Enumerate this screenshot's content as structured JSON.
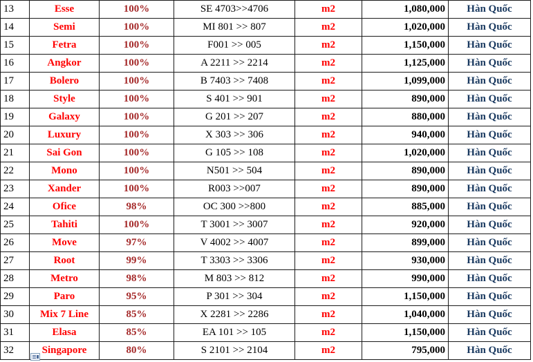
{
  "rows": [
    {
      "stt": "13",
      "name": "Esse",
      "pct": "100%",
      "code": "SE 4703>>4706",
      "unit": "m2",
      "price": "1,080,000",
      "origin": "Hàn Quốc"
    },
    {
      "stt": "14",
      "name": "Semi",
      "pct": "100%",
      "code": "MI 801 >> 807",
      "unit": "m2",
      "price": "1,020,000",
      "origin": "Hàn Quốc"
    },
    {
      "stt": "15",
      "name": "Fetra",
      "pct": "100%",
      "code": "F001 >> 005",
      "unit": "m2",
      "price": "1,150,000",
      "origin": "Hàn Quốc"
    },
    {
      "stt": "16",
      "name": "Angkor",
      "pct": "100%",
      "code": "A 2211 >> 2214",
      "unit": "m2",
      "price": "1,125,000",
      "origin": "Hàn Quốc"
    },
    {
      "stt": "17",
      "name": "Bolero",
      "pct": "100%",
      "code": "B 7403 >> 7408",
      "unit": "m2",
      "price": "1,099,000",
      "origin": "Hàn Quốc"
    },
    {
      "stt": "18",
      "name": "Style",
      "pct": "100%",
      "code": "S 401 >> 901",
      "unit": "m2",
      "price": "890,000",
      "origin": "Hàn Quốc"
    },
    {
      "stt": "19",
      "name": "Galaxy",
      "pct": "100%",
      "code": "G 201 >> 207",
      "unit": "m2",
      "price": "880,000",
      "origin": "Hàn Quốc"
    },
    {
      "stt": "20",
      "name": "Luxury",
      "pct": "100%",
      "code": "X 303 >> 306",
      "unit": "m2",
      "price": "940,000",
      "origin": "Hàn Quốc"
    },
    {
      "stt": "21",
      "name": "Sai Gon",
      "pct": "100%",
      "code": "G 105 >> 108",
      "unit": "m2",
      "price": "1,020,000",
      "origin": "Hàn Quốc"
    },
    {
      "stt": "22",
      "name": "Mono",
      "pct": "100%",
      "code": "N501 >> 504",
      "unit": "m2",
      "price": "890,000",
      "origin": "Hàn Quốc"
    },
    {
      "stt": "23",
      "name": "Xander",
      "pct": "100%",
      "code": "R003 >>007",
      "unit": "m2",
      "price": "890,000",
      "origin": "Hàn Quốc"
    },
    {
      "stt": "24",
      "name": "Ofice",
      "pct": "98%",
      "code": "OC 300 >>800",
      "unit": "m2",
      "price": "885,000",
      "origin": "Hàn Quốc"
    },
    {
      "stt": "25",
      "name": "Tahiti",
      "pct": "100%",
      "code": "T 3001 >> 3007",
      "unit": "m2",
      "price": "920,000",
      "origin": "Hàn Quốc"
    },
    {
      "stt": "26",
      "name": "Move",
      "pct": "97%",
      "code": "V 4002 >> 4007",
      "unit": "m2",
      "price": "899,000",
      "origin": "Hàn Quốc"
    },
    {
      "stt": "27",
      "name": "Root",
      "pct": "99%",
      "code": "T 3303 >> 3306",
      "unit": "m2",
      "price": "930,000",
      "origin": "Hàn Quốc"
    },
    {
      "stt": "28",
      "name": "Metro",
      "pct": "98%",
      "code": "M 803 >> 812",
      "unit": "m2",
      "price": "990,000",
      "origin": "Hàn Quốc"
    },
    {
      "stt": "29",
      "name": "Paro",
      "pct": "95%",
      "code": "P 301 >> 304",
      "unit": "m2",
      "price": "1,150,000",
      "origin": "Hàn Quốc"
    },
    {
      "stt": "30",
      "name": "Mix 7 Line",
      "pct": "85%",
      "code": "X 2281 >> 2286",
      "unit": "m2",
      "price": "1,040,000",
      "origin": "Hàn Quốc"
    },
    {
      "stt": "31",
      "name": "Elasa",
      "pct": "85%",
      "code": "EA 101 >> 105",
      "unit": "m2",
      "price": "1,150,000",
      "origin": "Hàn Quốc"
    },
    {
      "stt": "32",
      "name": "Singapore",
      "pct": "80%",
      "code": "S 2101 >> 2104",
      "unit": "m2",
      "price": "795,000",
      "origin": "Hàn Quốc"
    }
  ],
  "colors": {
    "name_text": "#ff0000",
    "percent_text": "#a52a2a",
    "unit_text": "#ff0000",
    "origin_text": "#17375e",
    "grid_lines": "#1a1a1a"
  },
  "icons": {
    "paste_options": "paste-options-icon"
  }
}
